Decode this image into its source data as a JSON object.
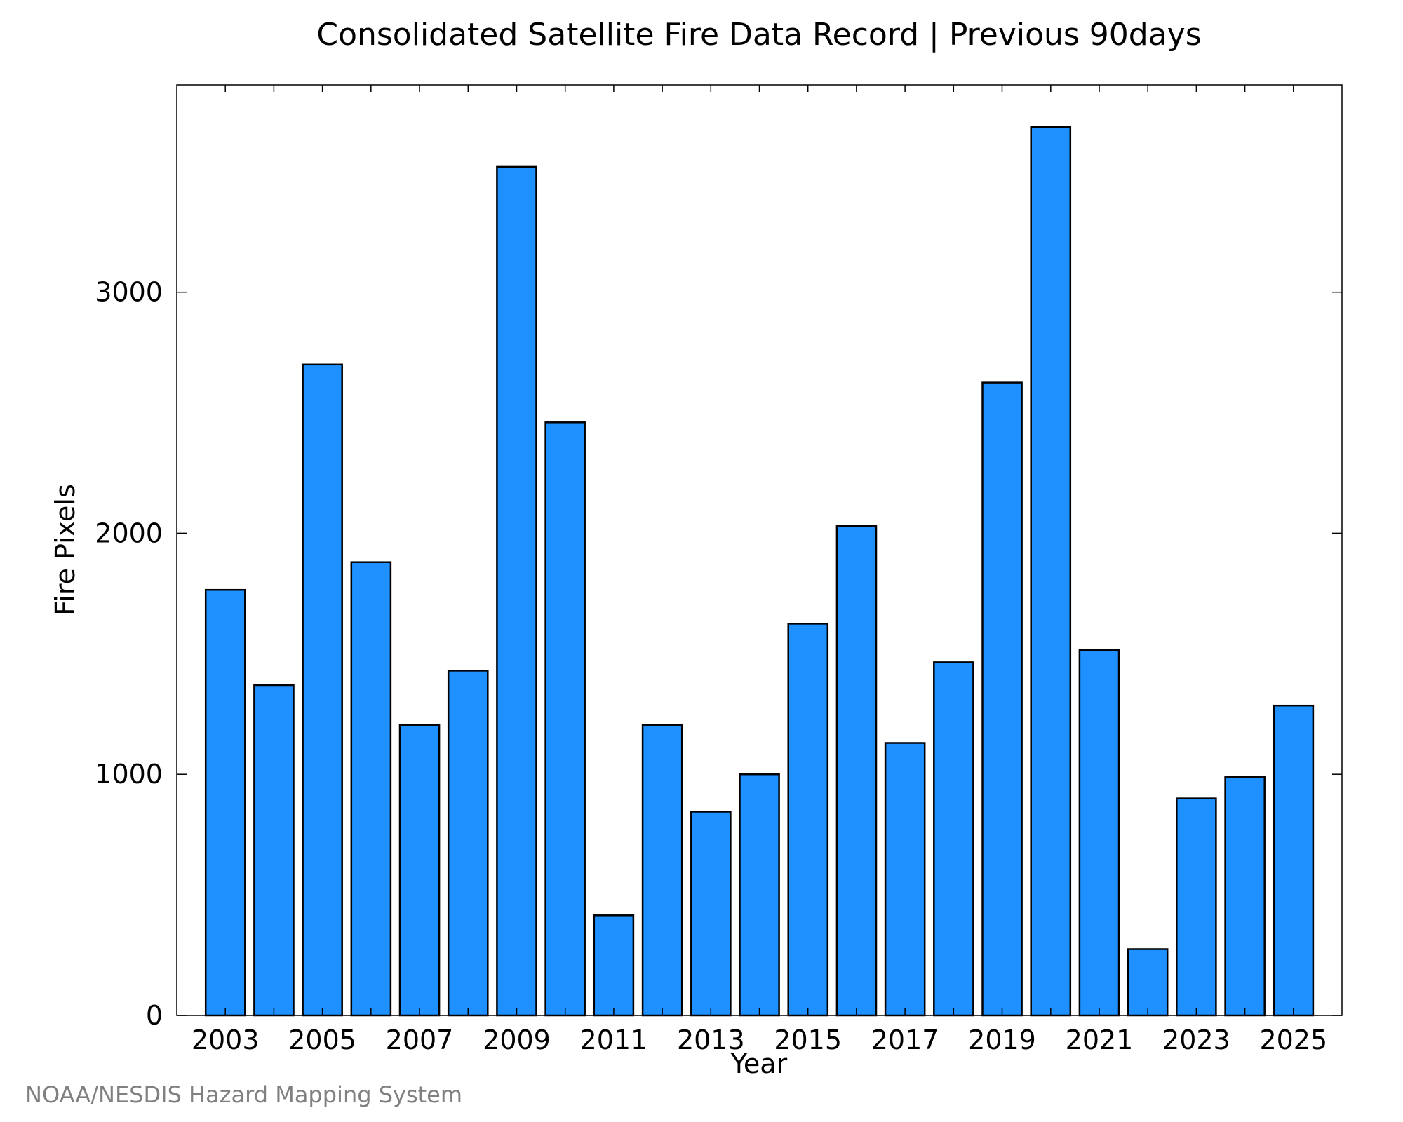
{
  "chart_data": {
    "type": "bar",
    "title": "Consolidated Satellite Fire Data Record | Previous 90days",
    "xlabel": "Year",
    "ylabel": "Fire Pixels",
    "categories": [
      "2003",
      "2004",
      "2005",
      "2006",
      "2007",
      "2008",
      "2009",
      "2010",
      "2011",
      "2012",
      "2013",
      "2014",
      "2015",
      "2016",
      "2017",
      "2018",
      "2019",
      "2020",
      "2021",
      "2022",
      "2023",
      "2024",
      "2025"
    ],
    "values": [
      1765,
      1370,
      2700,
      1880,
      1205,
      1430,
      3520,
      2460,
      415,
      1205,
      845,
      1000,
      1625,
      2030,
      1130,
      1465,
      2625,
      3685,
      1515,
      275,
      900,
      990,
      1285
    ],
    "x_tick_labels": [
      "2003",
      "2005",
      "2007",
      "2009",
      "2011",
      "2013",
      "2015",
      "2017",
      "2019",
      "2021",
      "2023",
      "2025"
    ],
    "y_tick_labels": [
      "0",
      "1000",
      "2000",
      "3000"
    ],
    "y_ticks": [
      0,
      1000,
      2000,
      3000
    ],
    "ylim": [
      0,
      3860
    ],
    "grid": false,
    "legend": "none",
    "bar_color": "#1e90ff",
    "bar_edge_color": "#000000",
    "credit": "NOAA/NESDIS Hazard Mapping System"
  }
}
